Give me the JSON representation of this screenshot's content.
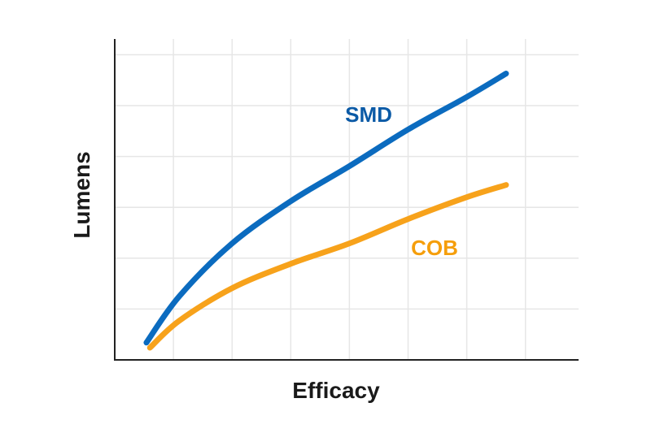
{
  "chart_data": {
    "type": "line",
    "title": "",
    "xlabel": "Efficacy",
    "ylabel": "Lumens",
    "xlim": [
      0,
      7.9
    ],
    "ylim": [
      0,
      6.3
    ],
    "grid": true,
    "legend": "inline labels",
    "series": [
      {
        "name": "SMD",
        "color": "#0b6bbf",
        "label_color": "#0b5aa6",
        "x": [
          0.54,
          1.1,
          2.0,
          3.0,
          4.0,
          5.0,
          6.0,
          6.67
        ],
        "y": [
          0.34,
          1.25,
          2.29,
          3.12,
          3.81,
          4.53,
          5.17,
          5.63
        ]
      },
      {
        "name": "COB",
        "color": "#f7a21b",
        "label_color": "#f59e0b",
        "x": [
          0.6,
          1.1,
          2.0,
          3.0,
          4.0,
          5.0,
          6.0,
          6.67
        ],
        "y": [
          0.24,
          0.77,
          1.41,
          1.89,
          2.29,
          2.77,
          3.2,
          3.44
        ]
      }
    ]
  }
}
